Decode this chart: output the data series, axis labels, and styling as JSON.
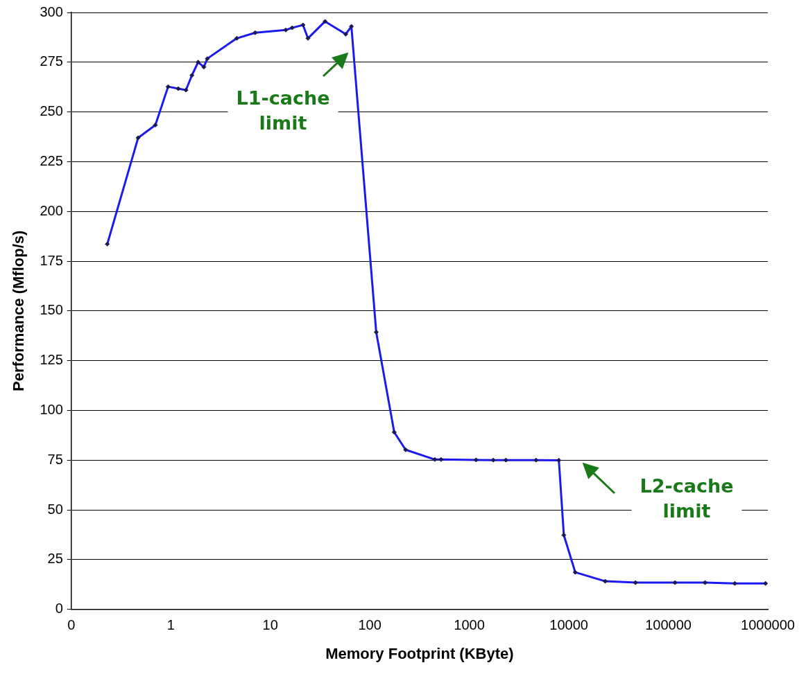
{
  "chart_data": {
    "type": "line",
    "xlabel": "Memory Footprint (KByte)",
    "ylabel": "Performance (Mflop/s)",
    "x": [
      0.23,
      0.47,
      0.7,
      0.94,
      1.19,
      1.42,
      1.63,
      1.88,
      2.15,
      2.33,
      4.6,
      7.05,
      14.3,
      16.6,
      21.3,
      23.9,
      35.5,
      57.3,
      65.3,
      116,
      176,
      229,
      450,
      520,
      1170,
      1740,
      2330,
      4680,
      7940,
      8910,
      11600,
      23200,
      46800,
      116800,
      234000,
      466000,
      948000
    ],
    "series": [
      {
        "color": "#1a1aee",
        "values": [
          183.6,
          237,
          243.4,
          262.7,
          261.7,
          261,
          268.4,
          275,
          272.6,
          276.8,
          287,
          289.8,
          291.2,
          292.3,
          293.7,
          287,
          295.5,
          289.1,
          293,
          139.3,
          89,
          80.2,
          75.3,
          75.3,
          75.1,
          75,
          75,
          75,
          74.9,
          37.3,
          18.6,
          14.1,
          13.4,
          13.4,
          13.4,
          13,
          13
        ]
      }
    ],
    "log": "x",
    "xlim": [
      0.1,
      1000000
    ],
    "xticks": [
      {
        "value": 0.1,
        "label": "0"
      },
      1,
      10,
      100,
      1000,
      10000,
      100000,
      1000000
    ],
    "ylim": [
      0,
      300
    ],
    "yticks": [
      0,
      25,
      50,
      75,
      100,
      125,
      150,
      175,
      200,
      225,
      250,
      275,
      300
    ],
    "grid": "y",
    "legend": false,
    "marker": "diamond",
    "line_style": "solid",
    "annotations": [
      "L1-cache limit",
      "L2-cache limit"
    ]
  }
}
